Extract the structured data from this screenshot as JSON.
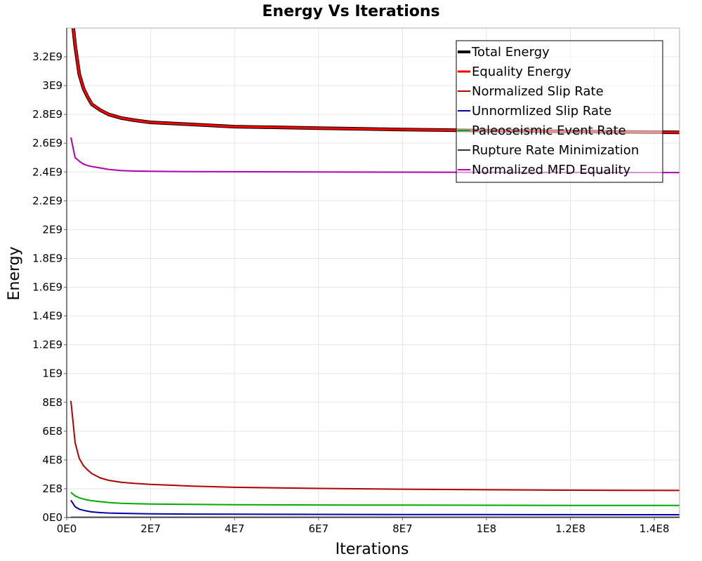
{
  "chart_data": {
    "type": "line",
    "title": "Energy Vs Iterations",
    "xlabel": "Iterations",
    "ylabel": "Energy",
    "xlim": [
      0,
      146000000
    ],
    "ylim": [
      0,
      3400000000
    ],
    "x_ticks": [
      {
        "value": 0,
        "label": "0E0"
      },
      {
        "value": 20000000,
        "label": "2E7"
      },
      {
        "value": 40000000,
        "label": "4E7"
      },
      {
        "value": 60000000,
        "label": "6E7"
      },
      {
        "value": 80000000,
        "label": "8E7"
      },
      {
        "value": 100000000,
        "label": "1E8"
      },
      {
        "value": 120000000,
        "label": "1.2E8"
      },
      {
        "value": 140000000,
        "label": "1.4E8"
      }
    ],
    "y_ticks": [
      {
        "value": 0,
        "label": "0E0"
      },
      {
        "value": 200000000,
        "label": "2E8"
      },
      {
        "value": 400000000,
        "label": "4E8"
      },
      {
        "value": 600000000,
        "label": "6E8"
      },
      {
        "value": 800000000,
        "label": "8E8"
      },
      {
        "value": 1000000000,
        "label": "1E9"
      },
      {
        "value": 1200000000,
        "label": "1.2E9"
      },
      {
        "value": 1400000000,
        "label": "1.4E9"
      },
      {
        "value": 1600000000,
        "label": "1.6E9"
      },
      {
        "value": 1800000000,
        "label": "1.8E9"
      },
      {
        "value": 2000000000,
        "label": "2E9"
      },
      {
        "value": 2200000000,
        "label": "2.2E9"
      },
      {
        "value": 2400000000,
        "label": "2.4E9"
      },
      {
        "value": 2600000000,
        "label": "2.6E9"
      },
      {
        "value": 2800000000,
        "label": "2.8E9"
      },
      {
        "value": 3000000000,
        "label": "3E9"
      },
      {
        "value": 3200000000,
        "label": "3.2E9"
      }
    ],
    "grid": true,
    "legend_position": "top-right",
    "series": [
      {
        "name": "Total Energy",
        "color": "#000000",
        "x": [
          1000000,
          2000000,
          3000000,
          4000000,
          5000000,
          6000000,
          8000000,
          10000000,
          13000000,
          16000000,
          20000000,
          30000000,
          40000000,
          60000000,
          80000000,
          100000000,
          120000000,
          146000000
        ],
        "values": [
          3560000000,
          3280000000,
          3080000000,
          2980000000,
          2920000000,
          2870000000,
          2830000000,
          2800000000,
          2775000000,
          2760000000,
          2745000000,
          2730000000,
          2715000000,
          2705000000,
          2695000000,
          2688000000,
          2682000000,
          2675000000
        ]
      },
      {
        "name": "Equality Energy",
        "color": "#ff0000",
        "x": [
          1000000,
          2000000,
          3000000,
          4000000,
          5000000,
          6000000,
          8000000,
          10000000,
          13000000,
          16000000,
          20000000,
          30000000,
          40000000,
          60000000,
          80000000,
          100000000,
          120000000,
          146000000
        ],
        "values": [
          3560000000,
          3280000000,
          3080000000,
          2980000000,
          2920000000,
          2870000000,
          2830000000,
          2800000000,
          2775000000,
          2760000000,
          2745000000,
          2730000000,
          2715000000,
          2705000000,
          2695000000,
          2688000000,
          2682000000,
          2675000000
        ]
      },
      {
        "name": "Normalized Slip Rate",
        "color": "#b00000",
        "x": [
          1000000,
          2000000,
          3000000,
          4000000,
          5000000,
          6000000,
          8000000,
          10000000,
          13000000,
          16000000,
          20000000,
          30000000,
          40000000,
          60000000,
          80000000,
          100000000,
          120000000,
          146000000
        ],
        "values": [
          810000000,
          520000000,
          410000000,
          360000000,
          330000000,
          305000000,
          275000000,
          258000000,
          245000000,
          237000000,
          230000000,
          218000000,
          210000000,
          202000000,
          197000000,
          193000000,
          190000000,
          188000000
        ]
      },
      {
        "name": "Unnormlized Slip Rate",
        "color": "#0000aa",
        "x": [
          1000000,
          2000000,
          3000000,
          4000000,
          5000000,
          6000000,
          8000000,
          10000000,
          13000000,
          16000000,
          20000000,
          30000000,
          40000000,
          60000000,
          80000000,
          100000000,
          120000000,
          146000000
        ],
        "values": [
          120000000,
          75000000,
          58000000,
          50000000,
          44000000,
          39000000,
          34000000,
          31000000,
          29000000,
          27500000,
          26000000,
          24000000,
          23000000,
          22000000,
          21000000,
          20500000,
          20000000,
          19500000
        ]
      },
      {
        "name": "Paleoseismic Event Rate",
        "color": "#00aa00",
        "x": [
          1000000,
          2000000,
          3000000,
          4000000,
          5000000,
          6000000,
          8000000,
          10000000,
          13000000,
          16000000,
          20000000,
          30000000,
          40000000,
          60000000,
          80000000,
          100000000,
          120000000,
          146000000
        ],
        "values": [
          175000000,
          150000000,
          137000000,
          128000000,
          122000000,
          117000000,
          110000000,
          104000000,
          99000000,
          96000000,
          94000000,
          91000000,
          89000000,
          87000000,
          86000000,
          85000000,
          84500000,
          84000000
        ]
      },
      {
        "name": "Rupture Rate Minimization",
        "color": "#333333",
        "x": [
          1000000,
          20000000,
          60000000,
          100000000,
          146000000
        ],
        "values": [
          2000000,
          2000000,
          2000000,
          2000000,
          2000000
        ]
      },
      {
        "name": "Normalized MFD Equality",
        "color": "#b000b0",
        "x": [
          1000000,
          2000000,
          3000000,
          4000000,
          5000000,
          6000000,
          8000000,
          10000000,
          13000000,
          16000000,
          20000000,
          30000000,
          40000000,
          60000000,
          80000000,
          100000000,
          120000000,
          146000000
        ],
        "values": [
          2640000000,
          2500000000,
          2475000000,
          2455000000,
          2445000000,
          2438000000,
          2428000000,
          2418000000,
          2410000000,
          2407000000,
          2405000000,
          2403000000,
          2402000000,
          2400000000,
          2399000000,
          2398000000,
          2397000000,
          2396000000
        ]
      }
    ]
  }
}
